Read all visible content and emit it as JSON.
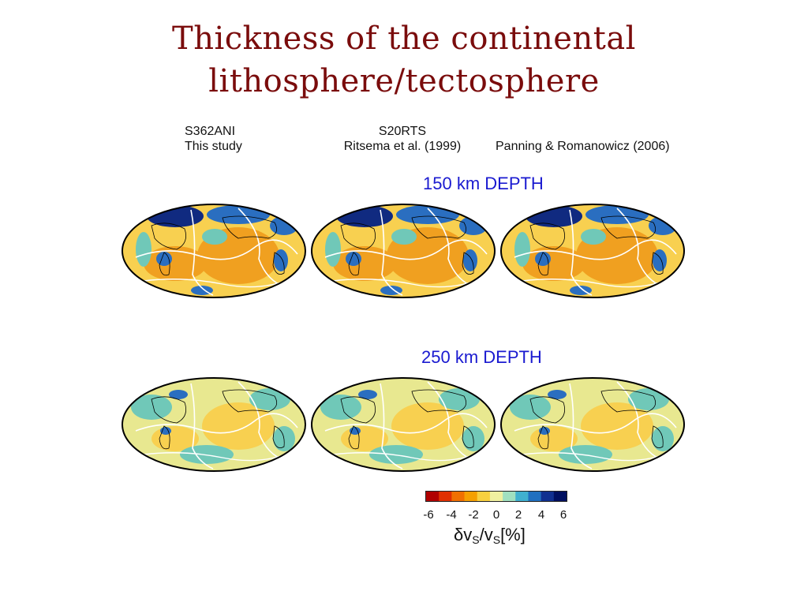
{
  "slide": {
    "title_line1": "Thickness of the continental",
    "title_line2": "lithosphere/tectosphere"
  },
  "models": [
    {
      "name": "S362ANI",
      "reference": "This study"
    },
    {
      "name": "S20RTS",
      "reference": "Ritsema et al. (1999)"
    },
    {
      "name": "",
      "reference": "Panning & Romanowicz (2006)"
    }
  ],
  "depths": [
    "150 km DEPTH",
    "250 km DEPTH"
  ],
  "colorbar": {
    "ticks": [
      "-6",
      "-4",
      "-2",
      "0",
      "2",
      "4",
      "6"
    ],
    "label_prefix": "δv",
    "label_sub1": "S",
    "label_mid": "/v",
    "label_sub2": "S",
    "label_suffix": "[%]",
    "colors": [
      "#b00000",
      "#e03000",
      "#f07000",
      "#f5a000",
      "#f8d040",
      "#f0f0a0",
      "#a0e0c0",
      "#40b0d0",
      "#2070c0",
      "#103090",
      "#001060"
    ]
  },
  "map_colors": {
    "slow": "#f0a020",
    "slow_light": "#f8d050",
    "neutral": "#e8e890",
    "fast_light": "#70c8b8",
    "fast": "#2a6ec0",
    "fast_deep": "#102a80",
    "plate_boundary": "#ffffff",
    "coastline": "#000000"
  }
}
